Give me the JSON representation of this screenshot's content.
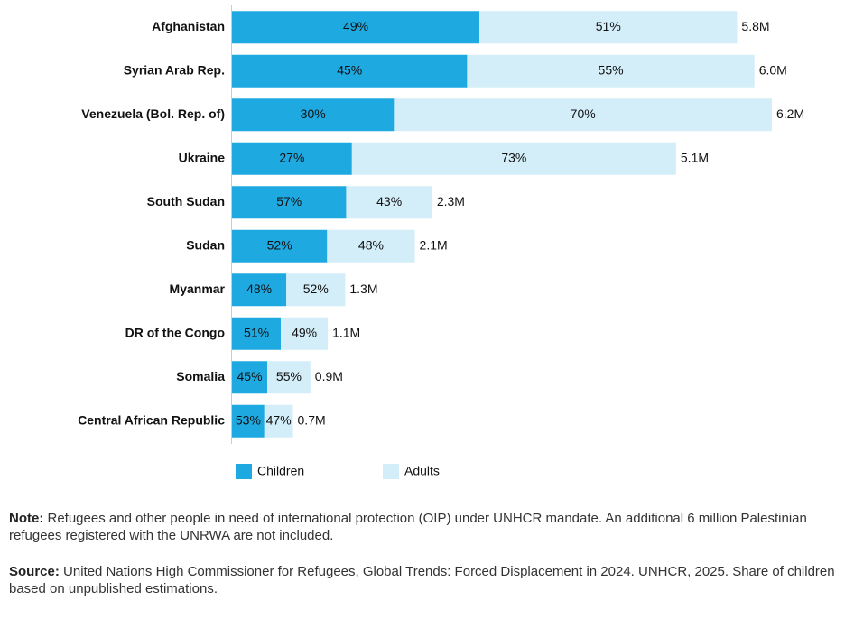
{
  "chart_data": {
    "type": "bar",
    "orientation": "horizontal",
    "stacked": true,
    "categories": [
      "Afghanistan",
      "Syrian Arab Rep.",
      "Venezuela (Bol. Rep. of)",
      "Ukraine",
      "South Sudan",
      "Sudan",
      "Myanmar",
      "DR of the Congo",
      "Somalia",
      "Central African Republic"
    ],
    "series": [
      {
        "name": "Children",
        "color": "#1fa9e1",
        "values": [
          49,
          45,
          30,
          27,
          57,
          52,
          48,
          51,
          45,
          53
        ],
        "value_labels": [
          "49%",
          "45%",
          "30%",
          "27%",
          "57%",
          "52%",
          "48%",
          "51%",
          "45%",
          "53%"
        ]
      },
      {
        "name": "Adults",
        "color": "#d3eef9",
        "values": [
          51,
          55,
          70,
          73,
          43,
          48,
          52,
          49,
          55,
          47
        ],
        "value_labels": [
          "51%",
          "55%",
          "70%",
          "73%",
          "43%",
          "48%",
          "52%",
          "49%",
          "55%",
          "47%"
        ]
      }
    ],
    "totals": {
      "values": [
        5.8,
        6.0,
        6.2,
        5.1,
        2.3,
        2.1,
        1.3,
        1.1,
        0.9,
        0.7
      ],
      "value_labels": [
        "5.8M",
        "6.0M",
        "6.2M",
        "5.1M",
        "2.3M",
        "2.1M",
        "1.3M",
        "1.1M",
        "0.9M",
        "0.7M"
      ]
    }
  },
  "note": {
    "label": "Note:",
    "text": "Refugees and other people in need of international protection (OIP) under UNHCR mandate. An additional 6 million Palestinian refugees registered with the UNRWA are not included."
  },
  "source": {
    "label": "Source:",
    "text": "United Nations High Commissioner for Refugees, Global Trends: Forced Displacement in 2024. UNHCR, 2025. Share of children based on unpublished estimations."
  }
}
